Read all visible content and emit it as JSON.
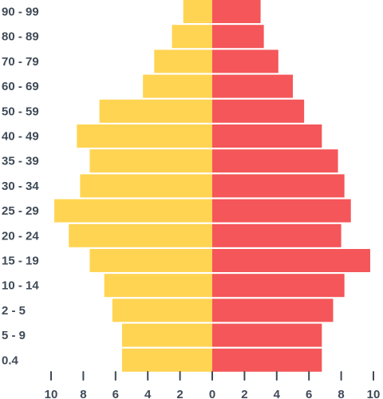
{
  "chart_data": {
    "type": "bar",
    "subtype": "population-pyramid",
    "title": "",
    "xlabel": "",
    "ylabel": "",
    "categories": [
      "90 - 99",
      "80 - 89",
      "70 - 79",
      "60 - 69",
      "50 - 59",
      "40 - 49",
      "35 - 39",
      "30 - 34",
      "25 - 29",
      "20 - 24",
      "15 - 19",
      "10 - 14",
      "2 - 5",
      "5 - 9",
      "0.4"
    ],
    "series": [
      {
        "side": "left",
        "color": "#ffd452",
        "values": [
          1.8,
          2.5,
          3.6,
          4.3,
          7.0,
          8.4,
          7.6,
          8.2,
          9.8,
          8.9,
          7.6,
          6.7,
          6.2,
          5.6,
          5.6
        ]
      },
      {
        "side": "right",
        "color": "#f45659",
        "values": [
          3.0,
          3.2,
          4.1,
          5.0,
          5.7,
          6.8,
          7.8,
          8.2,
          8.6,
          8.0,
          9.8,
          8.2,
          7.5,
          6.8,
          6.8
        ]
      }
    ],
    "xlim": [
      -10,
      10
    ],
    "xticks": [
      {
        "value": -10,
        "label": "10"
      },
      {
        "value": -8,
        "label": "8"
      },
      {
        "value": -6,
        "label": "6"
      },
      {
        "value": -4,
        "label": "4"
      },
      {
        "value": -2,
        "label": "2"
      },
      {
        "value": 0,
        "label": "0"
      },
      {
        "value": 2,
        "label": "2"
      },
      {
        "value": 4,
        "label": "4"
      },
      {
        "value": 6,
        "label": "6"
      },
      {
        "value": 8,
        "label": "8"
      },
      {
        "value": 10,
        "label": "10"
      }
    ],
    "grid": false,
    "legend": "none",
    "colors": {
      "text": "#3f4a57",
      "background": "#ffffff"
    }
  }
}
